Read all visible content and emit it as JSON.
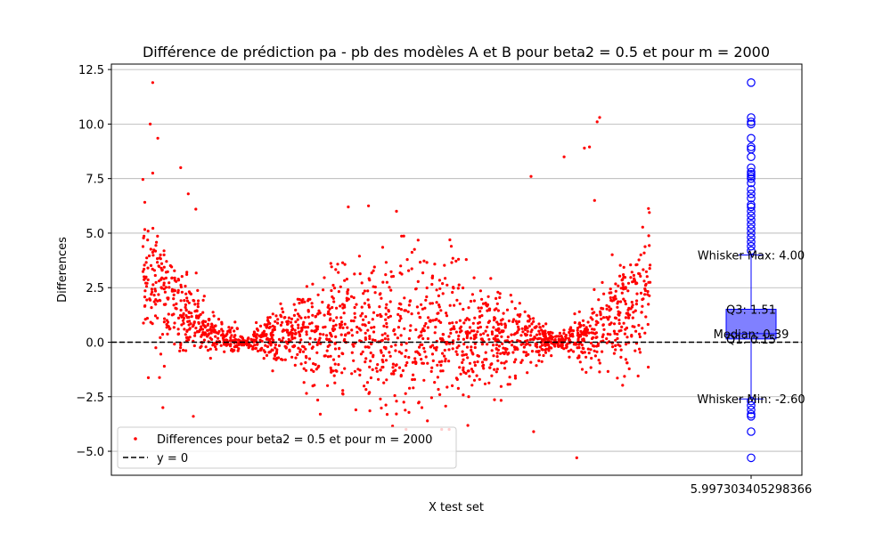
{
  "chart_data": {
    "type": "scatter",
    "title": "Différence de prédiction pa - pb des modèles A et B pour beta2 = 0.5 et pour m = 2000",
    "xlabel": "X test set",
    "ylabel": "Differences",
    "ylim": [
      -6.1,
      12.75
    ],
    "y_ticks": [
      -5.0,
      -2.5,
      0.0,
      2.5,
      5.0,
      7.5,
      10.0,
      12.5
    ],
    "y_tick_labels": [
      "−5.0",
      "−2.5",
      "0.0",
      "2.5",
      "5.0",
      "7.5",
      "10.0",
      "12.5"
    ],
    "x_tick_label": "5.997303405298366",
    "grid": "horizontal",
    "legend_position": "lower-left",
    "legend": [
      {
        "label": "Differences pour beta2 = 0.5 et pour m = 2000",
        "marker": "dot",
        "color": "#ff0000"
      },
      {
        "label": "y = 0",
        "marker": "dashed-line",
        "color": "#000000"
      }
    ],
    "series": [
      {
        "name": "Differences pour beta2 = 0.5 et pour m = 2000",
        "color": "#ff0000",
        "n_points": 2000,
        "sample_points": [
          [
            0.02,
            11.9
          ],
          [
            0.015,
            10.0
          ],
          [
            0.03,
            9.35
          ],
          [
            0.075,
            8.0
          ],
          [
            0.02,
            7.75
          ],
          [
            0.09,
            6.8
          ],
          [
            0.105,
            6.1
          ],
          [
            0.405,
            6.2
          ],
          [
            0.445,
            6.25
          ],
          [
            0.5,
            6.0
          ],
          [
            0.765,
            7.6
          ],
          [
            0.83,
            8.5
          ],
          [
            0.87,
            8.9
          ],
          [
            0.88,
            8.95
          ],
          [
            0.895,
            10.1
          ],
          [
            0.9,
            10.3
          ],
          [
            0.89,
            6.5
          ],
          [
            0.5,
            -2.7
          ],
          [
            0.55,
            -3.0
          ],
          [
            0.77,
            -4.1
          ],
          [
            0.855,
            -5.3
          ],
          [
            0.1,
            -3.4
          ],
          [
            0.35,
            -3.3
          ],
          [
            0.42,
            -3.1
          ],
          [
            0.04,
            -3.0
          ]
        ]
      },
      {
        "name": "y = 0",
        "color": "#000000",
        "y": 0.0
      }
    ],
    "boxplot": {
      "color": "#0000ff",
      "fill": "#8080ff",
      "whisker_max": 4.0,
      "q3": 1.51,
      "median": 0.39,
      "q1": 0.15,
      "whisker_min": -2.6,
      "outliers": [
        11.9,
        10.3,
        10.1,
        10.0,
        9.35,
        8.95,
        8.85,
        8.5,
        8.0,
        7.8,
        7.7,
        7.6,
        7.5,
        7.3,
        7.0,
        6.8,
        6.6,
        6.3,
        6.2,
        6.0,
        5.8,
        5.6,
        5.4,
        5.2,
        5.0,
        4.8,
        4.6,
        4.4,
        4.2,
        -2.7,
        -2.9,
        -3.1,
        -3.3,
        -3.4,
        -4.1,
        -5.3
      ],
      "annotations": {
        "whisker_max": "Whisker Max: 4.00",
        "q3": "Q3: 1.51",
        "median": "Median: 0.39",
        "q1": "Q1: 0.15",
        "whisker_min": "Whisker Min: -2.60"
      }
    }
  }
}
